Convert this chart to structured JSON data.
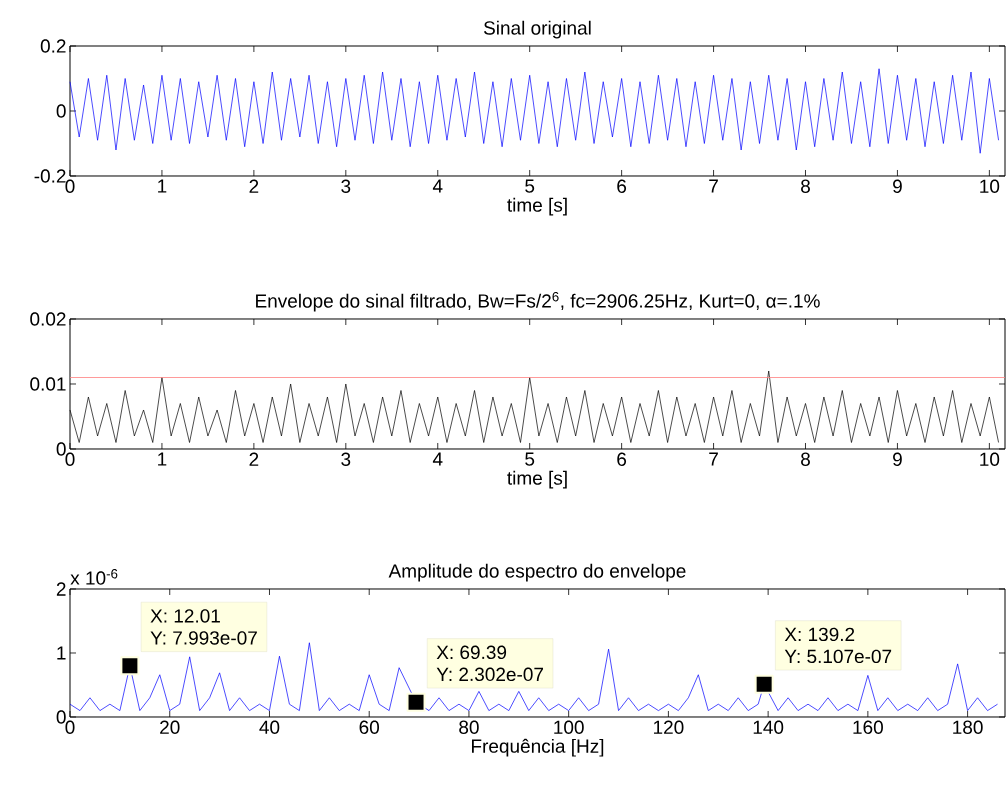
{
  "chart_data": [
    {
      "type": "line",
      "title": "Sinal original",
      "xlabel": "time [s]",
      "xlim": [
        0,
        10.17
      ],
      "xticks": [
        0,
        1,
        2,
        3,
        4,
        5,
        6,
        7,
        8,
        9,
        10
      ],
      "ylim": [
        -0.2,
        0.2
      ],
      "yticks": [
        -0.2,
        0,
        0.2
      ],
      "series": [
        {
          "color": "#0000ff",
          "x": [
            0,
            0.1,
            0.2,
            0.3,
            0.4,
            0.5,
            0.6,
            0.7,
            0.8,
            0.9,
            1,
            1.1,
            1.2,
            1.3,
            1.4,
            1.5,
            1.6,
            1.7,
            1.8,
            1.9,
            2,
            2.1,
            2.2,
            2.3,
            2.4,
            2.5,
            2.6,
            2.7,
            2.8,
            2.9,
            3,
            3.1,
            3.2,
            3.3,
            3.4,
            3.5,
            3.6,
            3.7,
            3.8,
            3.9,
            4,
            4.1,
            4.2,
            4.3,
            4.4,
            4.5,
            4.6,
            4.7,
            4.8,
            4.9,
            5,
            5.1,
            5.2,
            5.3,
            5.4,
            5.5,
            5.6,
            5.7,
            5.8,
            5.9,
            6,
            6.1,
            6.2,
            6.3,
            6.4,
            6.5,
            6.6,
            6.7,
            6.8,
            6.9,
            7,
            7.1,
            7.2,
            7.3,
            7.4,
            7.5,
            7.6,
            7.7,
            7.8,
            7.9,
            8,
            8.1,
            8.2,
            8.3,
            8.4,
            8.5,
            8.6,
            8.7,
            8.8,
            8.9,
            9,
            9.1,
            9.2,
            9.3,
            9.4,
            9.5,
            9.6,
            9.7,
            9.8,
            9.9,
            10,
            10.1
          ],
          "values": [
            0.09,
            -0.08,
            0.1,
            -0.09,
            0.11,
            -0.12,
            0.1,
            -0.09,
            0.08,
            -0.1,
            0.11,
            -0.09,
            0.1,
            -0.1,
            0.09,
            -0.08,
            0.11,
            -0.09,
            0.1,
            -0.11,
            0.09,
            -0.1,
            0.12,
            -0.09,
            0.1,
            -0.08,
            0.11,
            -0.1,
            0.09,
            -0.11,
            0.1,
            -0.09,
            0.11,
            -0.1,
            0.12,
            -0.09,
            0.1,
            -0.11,
            0.09,
            -0.1,
            0.11,
            -0.09,
            0.1,
            -0.08,
            0.12,
            -0.1,
            0.09,
            -0.11,
            0.1,
            -0.09,
            0.11,
            -0.1,
            0.09,
            -0.11,
            0.1,
            -0.09,
            0.12,
            -0.1,
            0.09,
            -0.08,
            0.1,
            -0.11,
            0.09,
            -0.1,
            0.11,
            -0.09,
            0.1,
            -0.11,
            0.09,
            -0.1,
            0.11,
            -0.09,
            0.1,
            -0.12,
            0.09,
            -0.1,
            0.11,
            -0.09,
            0.1,
            -0.12,
            0.09,
            -0.11,
            0.1,
            -0.09,
            0.12,
            -0.1,
            0.09,
            -0.11,
            0.13,
            -0.1,
            0.11,
            -0.09,
            0.1,
            -0.11,
            0.09,
            -0.1,
            0.11,
            -0.09,
            0.12,
            -0.13,
            0.1,
            -0.09
          ]
        }
      ]
    },
    {
      "type": "line",
      "title": "Envelope do sinal filtrado, Bw=Fs/2$^{6}$, fc=2906.25Hz, Kurt=0, α=.1%",
      "xlabel": "time [s]",
      "xlim": [
        0,
        10.17
      ],
      "xticks": [
        0,
        1,
        2,
        3,
        4,
        5,
        6,
        7,
        8,
        9,
        10
      ],
      "ylim": [
        0,
        0.02
      ],
      "yticks": [
        0,
        0.01,
        0.02
      ],
      "ref_lines": [
        {
          "axis": "y",
          "value": 0.011,
          "color": "#ff8080"
        }
      ],
      "series": [
        {
          "color": "#000000",
          "x": [
            0,
            0.1,
            0.2,
            0.3,
            0.4,
            0.5,
            0.6,
            0.7,
            0.8,
            0.9,
            1,
            1.1,
            1.2,
            1.3,
            1.4,
            1.5,
            1.6,
            1.7,
            1.8,
            1.9,
            2,
            2.1,
            2.2,
            2.3,
            2.4,
            2.5,
            2.6,
            2.7,
            2.8,
            2.9,
            3,
            3.1,
            3.2,
            3.3,
            3.4,
            3.5,
            3.6,
            3.7,
            3.8,
            3.9,
            4,
            4.1,
            4.2,
            4.3,
            4.4,
            4.5,
            4.6,
            4.7,
            4.8,
            4.9,
            5,
            5.1,
            5.2,
            5.3,
            5.4,
            5.5,
            5.6,
            5.7,
            5.8,
            5.9,
            6,
            6.1,
            6.2,
            6.3,
            6.4,
            6.5,
            6.6,
            6.7,
            6.8,
            6.9,
            7,
            7.1,
            7.2,
            7.3,
            7.4,
            7.5,
            7.6,
            7.7,
            7.8,
            7.9,
            8,
            8.1,
            8.2,
            8.3,
            8.4,
            8.5,
            8.6,
            8.7,
            8.8,
            8.9,
            9,
            9.1,
            9.2,
            9.3,
            9.4,
            9.5,
            9.6,
            9.7,
            9.8,
            9.9,
            10,
            10.1
          ],
          "values": [
            0.006,
            0.001,
            0.008,
            0.002,
            0.007,
            0.001,
            0.009,
            0.002,
            0.006,
            0.001,
            0.011,
            0.002,
            0.007,
            0.001,
            0.008,
            0.002,
            0.006,
            0.001,
            0.009,
            0.002,
            0.007,
            0.001,
            0.008,
            0.002,
            0.01,
            0.001,
            0.007,
            0.002,
            0.008,
            0.001,
            0.01,
            0.002,
            0.007,
            0.001,
            0.008,
            0.002,
            0.009,
            0.001,
            0.007,
            0.002,
            0.008,
            0.001,
            0.007,
            0.002,
            0.009,
            0.001,
            0.008,
            0.002,
            0.007,
            0.001,
            0.011,
            0.002,
            0.007,
            0.001,
            0.008,
            0.002,
            0.009,
            0.001,
            0.007,
            0.002,
            0.008,
            0.001,
            0.007,
            0.002,
            0.009,
            0.001,
            0.008,
            0.002,
            0.007,
            0.001,
            0.008,
            0.002,
            0.009,
            0.001,
            0.007,
            0.002,
            0.012,
            0.001,
            0.008,
            0.002,
            0.007,
            0.001,
            0.008,
            0.002,
            0.009,
            0.001,
            0.007,
            0.002,
            0.008,
            0.001,
            0.009,
            0.002,
            0.007,
            0.001,
            0.008,
            0.002,
            0.009,
            0.001,
            0.007,
            0.002,
            0.008,
            0.001
          ]
        }
      ]
    },
    {
      "type": "line",
      "title": "Amplitude do espectro do envelope",
      "xlabel": "Frequência [Hz]",
      "xlim": [
        0,
        187.5
      ],
      "xticks": [
        0,
        20,
        40,
        60,
        80,
        100,
        120,
        140,
        160,
        180
      ],
      "ylim": [
        0,
        2
      ],
      "yticks": [
        0,
        1,
        2
      ],
      "annotations": [
        "x 10$^{-6}$",
        {
          "text": "X: 12.01",
          "x": 12.01,
          "y": 0.7993
        },
        {
          "text": "Y: 7.993e-07",
          "x": 12.01,
          "y": 0.7993
        },
        {
          "text": "X: 69.39",
          "x": 69.39,
          "y": 0.2302
        },
        {
          "text": "Y: 2.302e-07",
          "x": 69.39,
          "y": 0.2302
        },
        {
          "text": "X: 139.2",
          "x": 139.2,
          "y": 0.5107
        },
        {
          "text": "Y: 5.107e-07",
          "x": 139.2,
          "y": 0.5107
        }
      ],
      "series": [
        {
          "color": "#0000ff",
          "x": [
            0,
            2,
            4,
            6,
            8,
            10,
            12.01,
            14,
            16,
            18,
            20,
            22,
            24,
            26,
            28,
            30,
            32,
            34,
            36,
            38,
            40,
            42,
            44,
            46,
            48,
            50,
            52,
            54,
            56,
            58,
            60,
            62,
            64,
            66,
            69.39,
            72,
            74,
            76,
            78,
            80,
            82,
            84,
            86,
            88,
            90,
            92,
            94,
            96,
            98,
            100,
            102,
            104,
            106,
            108,
            110,
            112,
            114,
            116,
            118,
            120,
            122,
            124,
            126,
            128,
            130,
            132,
            134,
            136,
            138,
            139.2,
            142,
            144,
            146,
            148,
            150,
            152,
            154,
            156,
            158,
            160,
            162,
            164,
            166,
            168,
            170,
            172,
            174,
            176,
            178,
            180,
            182,
            184,
            186
          ],
          "values": [
            0.2,
            0.1,
            0.3,
            0.1,
            0.2,
            0.1,
            0.7993,
            0.1,
            0.3,
            0.66,
            0.1,
            0.2,
            0.94,
            0.1,
            0.3,
            0.69,
            0.1,
            0.3,
            0.1,
            0.2,
            0.1,
            0.95,
            0.2,
            0.1,
            1.16,
            0.1,
            0.3,
            0.1,
            0.2,
            0.1,
            0.66,
            0.2,
            0.1,
            0.77,
            0.2302,
            0.1,
            0.3,
            0.1,
            0.2,
            0.1,
            0.4,
            0.1,
            0.2,
            0.1,
            0.4,
            0.1,
            0.3,
            0.1,
            0.2,
            0.1,
            0.3,
            0.1,
            0.2,
            1.06,
            0.1,
            0.3,
            0.1,
            0.2,
            0.1,
            0.2,
            0.1,
            0.3,
            0.66,
            0.1,
            0.2,
            0.1,
            0.3,
            0.1,
            0.2,
            0.5107,
            0.1,
            0.3,
            0.1,
            0.2,
            0.1,
            0.3,
            0.1,
            0.2,
            0.1,
            0.65,
            0.1,
            0.3,
            0.1,
            0.2,
            0.1,
            0.3,
            0.1,
            0.2,
            0.83,
            0.1,
            0.3,
            0.1,
            0.2
          ]
        }
      ]
    }
  ]
}
